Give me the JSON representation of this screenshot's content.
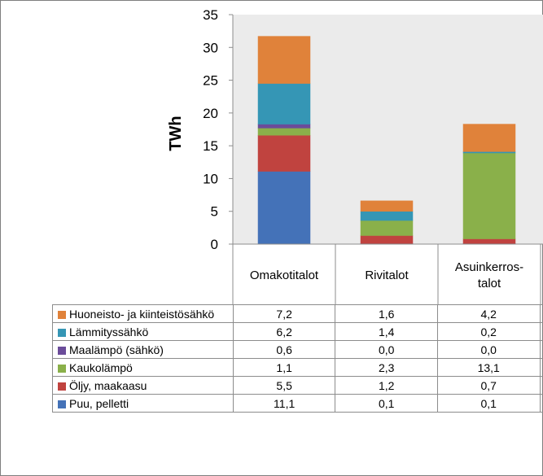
{
  "chart_data": {
    "type": "bar",
    "stacked": true,
    "ylabel": "TWh",
    "ylim": [
      0,
      35
    ],
    "yticks": [
      0,
      5,
      10,
      15,
      20,
      25,
      30,
      35
    ],
    "grid": false,
    "categories": [
      "Omakotitalot",
      "Rivitalot",
      "Asuinkerros-\ntalot"
    ],
    "category_lines": [
      [
        "Omakotitalot"
      ],
      [
        "Rivitalot"
      ],
      [
        "Asuinkerros-",
        "talot"
      ]
    ],
    "series": [
      {
        "name": "Huoneisto- ja kiinteistösähkö",
        "color": "#E0823A",
        "values": [
          7.2,
          1.6,
          4.2
        ],
        "labels": [
          "7,2",
          "1,6",
          "4,2"
        ]
      },
      {
        "name": "Lämmityssähkö",
        "color": "#3596B5",
        "values": [
          6.2,
          1.4,
          0.2
        ],
        "labels": [
          "6,2",
          "1,4",
          "0,2"
        ]
      },
      {
        "name": "Maalämpö (sähkö)",
        "color": "#6B4C9A",
        "values": [
          0.6,
          0.0,
          0.0
        ],
        "labels": [
          "0,6",
          "0,0",
          "0,0"
        ]
      },
      {
        "name": "Kaukolämpö",
        "color": "#8AB04A",
        "values": [
          1.1,
          2.3,
          13.1
        ],
        "labels": [
          "1,1",
          "2,3",
          "13,1"
        ]
      },
      {
        "name": "Öljy, maakaasu",
        "color": "#C0433F",
        "values": [
          5.5,
          1.2,
          0.7
        ],
        "labels": [
          "5,5",
          "1,2",
          "0,7"
        ]
      },
      {
        "name": "Puu, pelletti",
        "color": "#4472B8",
        "values": [
          11.1,
          0.1,
          0.1
        ],
        "labels": [
          "11,1",
          "0,1",
          "0,1"
        ]
      }
    ]
  }
}
